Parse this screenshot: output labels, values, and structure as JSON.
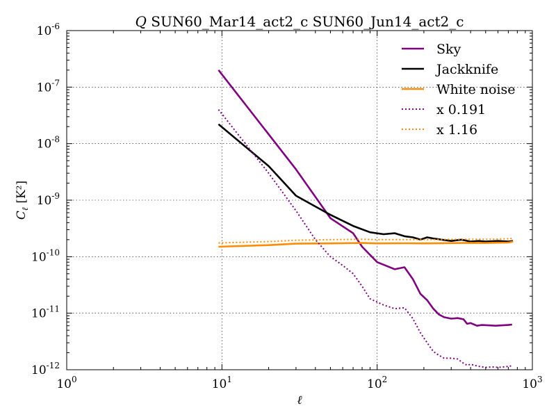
{
  "chart_data": {
    "type": "line",
    "title": "Q SUN60_Mar14_act2_c SUN60_Jun14_act2_c",
    "title_symbol": "Q",
    "title_text": "SUN60_Mar14_act2_c SUN60_Jun14_act2_c",
    "xlabel": "ℓ",
    "ylabel": "Cℓ [K²]",
    "ylabel_main": "C",
    "ylabel_sub": "ℓ",
    "ylabel_unit": "[K²]",
    "xscale": "log",
    "yscale": "log",
    "xlim": [
      1,
      1000
    ],
    "ylim": [
      1e-12,
      1e-06
    ],
    "grid": true,
    "legend_position": "top-right",
    "x_ticks": [
      {
        "value": 1,
        "base": "10",
        "exp": "0"
      },
      {
        "value": 10,
        "base": "10",
        "exp": "1"
      },
      {
        "value": 100,
        "base": "10",
        "exp": "2"
      },
      {
        "value": 1000,
        "base": "10",
        "exp": "3"
      }
    ],
    "y_ticks": [
      {
        "value": 1e-12,
        "base": "10",
        "exp": "-12"
      },
      {
        "value": 1e-11,
        "base": "10",
        "exp": "-11"
      },
      {
        "value": 1e-10,
        "base": "10",
        "exp": "-10"
      },
      {
        "value": 1e-09,
        "base": "10",
        "exp": "-9"
      },
      {
        "value": 1e-08,
        "base": "10",
        "exp": "-8"
      },
      {
        "value": 1e-07,
        "base": "10",
        "exp": "-7"
      },
      {
        "value": 1e-06,
        "base": "10",
        "exp": "-6"
      }
    ],
    "series": [
      {
        "name": "Sky",
        "color": "#800080",
        "style": "solid",
        "x": [
          9.5,
          30,
          50,
          70,
          80,
          100,
          130,
          150,
          170,
          190,
          210,
          230,
          250,
          270,
          300,
          330,
          360,
          380,
          400,
          440,
          470,
          520,
          580,
          640,
          700,
          740
        ],
        "y": [
          2e-07,
          3.5e-09,
          4.8e-10,
          2.6e-10,
          1.5e-10,
          8e-11,
          6e-11,
          6.5e-11,
          4e-11,
          2.2e-11,
          1.7e-11,
          1.2e-11,
          9.5e-12,
          8.5e-12,
          8e-12,
          8.2e-12,
          7.8e-12,
          6.5e-12,
          6.7e-12,
          6e-12,
          6.2e-12,
          6.1e-12,
          6e-12,
          6.1e-12,
          6.2e-12,
          6.3e-12
        ]
      },
      {
        "name": "Jackknife",
        "color": "#000000",
        "style": "solid",
        "x": [
          9.5,
          20,
          30,
          50,
          70,
          90,
          110,
          130,
          150,
          170,
          190,
          210,
          230,
          260,
          300,
          350,
          400,
          450,
          500,
          600,
          700,
          750
        ],
        "y": [
          2.2e-08,
          4e-09,
          1.2e-09,
          5.5e-10,
          3.5e-10,
          2.7e-10,
          2.5e-10,
          2.6e-10,
          2.3e-10,
          2.2e-10,
          2e-10,
          2.2e-10,
          2.1e-10,
          2e-10,
          1.9e-10,
          2e-10,
          1.85e-10,
          1.9e-10,
          1.85e-10,
          1.9e-10,
          1.85e-10,
          1.9e-10
        ]
      },
      {
        "name": "White noise",
        "color": "#ff8c00",
        "style": "solid",
        "x": [
          9.5,
          20,
          30,
          50,
          80,
          100,
          150,
          200,
          300,
          400,
          500,
          600,
          700,
          750
        ],
        "y": [
          1.5e-10,
          1.6e-10,
          1.7e-10,
          1.72e-10,
          1.75e-10,
          1.72e-10,
          1.73e-10,
          1.72e-10,
          1.74e-10,
          1.76e-10,
          1.75e-10,
          1.77e-10,
          1.78e-10,
          1.85e-10
        ]
      },
      {
        "name": "x 0.191",
        "color": "#800080",
        "style": "dotted",
        "x": [
          9.5,
          20,
          30,
          40,
          50,
          60,
          70,
          80,
          90,
          110,
          130,
          150,
          170,
          190,
          210,
          230,
          250,
          270,
          300,
          330,
          360,
          380,
          400,
          450,
          500,
          550,
          600,
          650,
          700,
          750
        ],
        "y": [
          4e-08,
          3e-09,
          6.5e-10,
          2e-10,
          1e-10,
          7e-11,
          5e-11,
          3e-11,
          1.8e-11,
          1.4e-11,
          1.2e-11,
          1.25e-11,
          8e-12,
          4.5e-12,
          3e-12,
          2.1e-12,
          1.8e-12,
          1.6e-12,
          1.6e-12,
          1.55e-12,
          1.3e-12,
          1.2e-12,
          1.25e-12,
          1.15e-12,
          1.1e-12,
          1.12e-12,
          1.1e-12,
          1.12e-12,
          1.15e-12,
          1.18e-12
        ]
      },
      {
        "name": "x 1.16",
        "color": "#ff8c00",
        "style": "dotted",
        "x": [
          9.5,
          20,
          30,
          50,
          80,
          100,
          150,
          200,
          300,
          400,
          500,
          600,
          700,
          750
        ],
        "y": [
          1.75e-10,
          1.85e-10,
          1.95e-10,
          2e-10,
          2.03e-10,
          2e-10,
          2.01e-10,
          2e-10,
          2.02e-10,
          2.04e-10,
          2.03e-10,
          2.05e-10,
          2.07e-10,
          2.12e-10
        ]
      }
    ]
  }
}
